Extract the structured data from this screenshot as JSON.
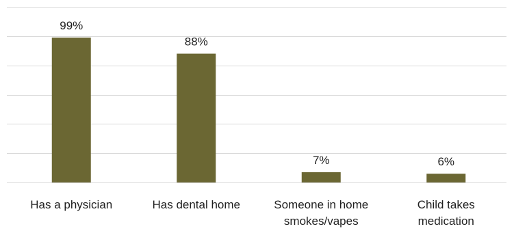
{
  "chart_data": {
    "type": "bar",
    "categories": [
      [
        "Has a physician"
      ],
      [
        "Has dental home"
      ],
      [
        "Someone in home",
        "smokes/vapes"
      ],
      [
        "Child takes",
        "medication"
      ]
    ],
    "values": [
      99,
      88,
      7,
      6
    ],
    "data_labels": [
      "99%",
      "88%",
      "7%",
      "6%"
    ],
    "title": "",
    "xlabel": "",
    "ylabel": "",
    "ylim": [
      0,
      120
    ],
    "grid": true,
    "legend": "none",
    "colors": {
      "bar": "#6b6733",
      "grid": "#d9d9d9",
      "text": "#1f1f1f"
    }
  }
}
